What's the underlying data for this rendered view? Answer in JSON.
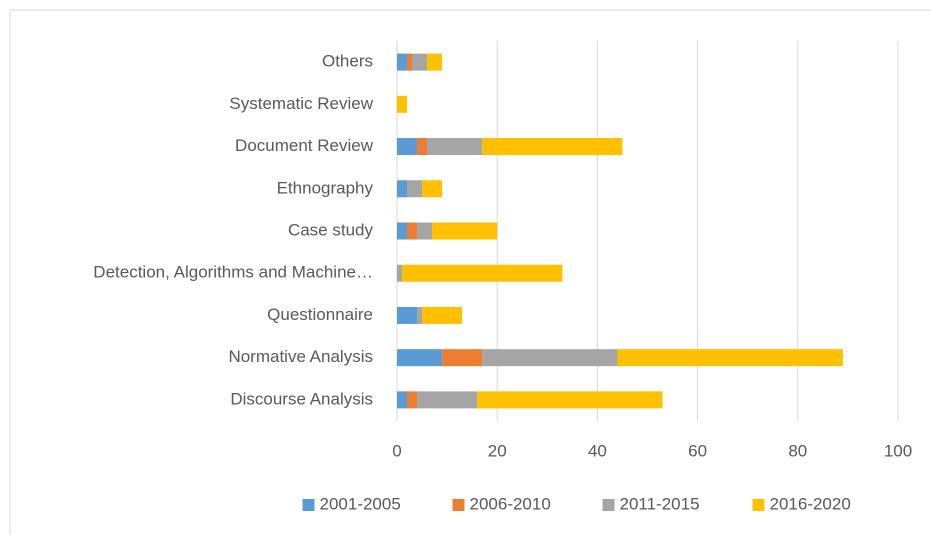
{
  "chart_data": {
    "type": "stacked-barh",
    "categories": [
      "Discourse Analysis",
      "Normative Analysis",
      "Questionnaire",
      "Detection, Algorithms and Machine…",
      "Case study",
      "Ethnography",
      "Document Review",
      "Systematic Review",
      "Others"
    ],
    "series": [
      {
        "name": "2001-2005",
        "color": "#5b9bd5",
        "values": [
          2,
          9,
          4,
          0,
          2,
          2,
          4,
          0,
          2
        ]
      },
      {
        "name": "2006-2010",
        "color": "#ed7d31",
        "values": [
          2,
          8,
          0,
          0,
          2,
          0,
          2,
          0,
          1
        ]
      },
      {
        "name": "2011-2015",
        "color": "#a5a5a5",
        "values": [
          12,
          27,
          1,
          1,
          3,
          3,
          11,
          0,
          3
        ]
      },
      {
        "name": "2016-2020",
        "color": "#ffc000",
        "values": [
          37,
          45,
          8,
          32,
          13,
          4,
          28,
          2,
          3
        ]
      }
    ],
    "xlim": [
      0,
      100
    ],
    "xticks": [
      0,
      20,
      40,
      60,
      80,
      100
    ],
    "grid": true,
    "legend": "bottom"
  }
}
